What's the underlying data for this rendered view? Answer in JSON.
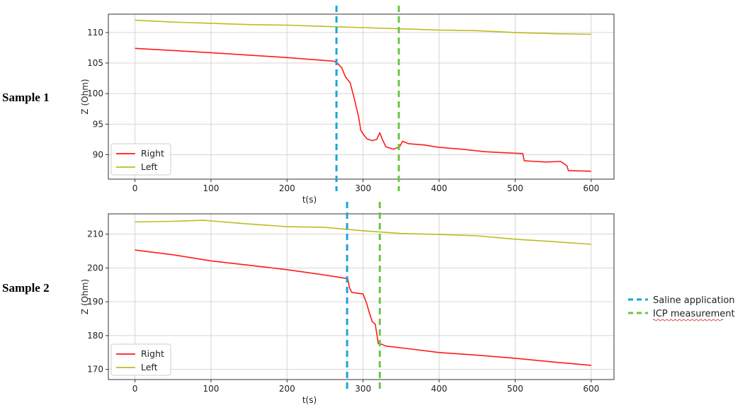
{
  "figure": {
    "sample_labels": [
      "Sample 1",
      "Sample 2"
    ],
    "legend": [
      {
        "label": "Saline application",
        "color": "#18a7d6",
        "style": "dashed"
      },
      {
        "label": "ICP measurement",
        "color": "#6cc644",
        "style": "dashed"
      }
    ]
  },
  "chart_data": [
    {
      "type": "line",
      "title": "",
      "xlabel": "t(s)",
      "ylabel": "Z (Ohm)",
      "xlim": [
        -35,
        630
      ],
      "ylim": [
        86,
        113
      ],
      "xticks": [
        0,
        100,
        200,
        300,
        400,
        500,
        600
      ],
      "yticks": [
        90,
        95,
        100,
        105,
        110
      ],
      "grid": true,
      "legend_position": "lower-left",
      "events": {
        "saline_application": 265,
        "icp_measurement": 347
      },
      "series": [
        {
          "name": "Right",
          "color": "#ff1a1a",
          "x": [
            0,
            100,
            200,
            262,
            266,
            272,
            277,
            283,
            288,
            294,
            297,
            300,
            305,
            312,
            318,
            322,
            325,
            330,
            340,
            348,
            352,
            360,
            380,
            400,
            430,
            460,
            490,
            510,
            512,
            540,
            560,
            568,
            570,
            600
          ],
          "y": [
            107.4,
            106.7,
            105.9,
            105.3,
            105.0,
            104.2,
            102.7,
            101.8,
            99.4,
            96.3,
            94.0,
            93.4,
            92.6,
            92.3,
            92.5,
            93.6,
            92.6,
            91.3,
            90.9,
            91.3,
            92.2,
            91.8,
            91.6,
            91.2,
            90.9,
            90.5,
            90.3,
            90.2,
            89.0,
            88.8,
            88.9,
            88.2,
            87.4,
            87.3
          ]
        },
        {
          "name": "Left",
          "color": "#bcbd22",
          "x": [
            0,
            50,
            100,
            150,
            200,
            250,
            300,
            350,
            400,
            450,
            500,
            550,
            600
          ],
          "y": [
            112.0,
            111.7,
            111.5,
            111.3,
            111.2,
            111.0,
            110.8,
            110.6,
            110.4,
            110.3,
            110.0,
            109.8,
            109.7
          ]
        }
      ]
    },
    {
      "type": "line",
      "title": "",
      "xlabel": "t(s)",
      "ylabel": "Z (Ohm)",
      "xlim": [
        -35,
        630
      ],
      "ylim": [
        167,
        216
      ],
      "xticks": [
        0,
        100,
        200,
        300,
        400,
        500,
        600
      ],
      "yticks": [
        170,
        180,
        190,
        200,
        210
      ],
      "grid": true,
      "legend_position": "lower-left",
      "events": {
        "saline_application": 279,
        "icp_measurement": 322
      },
      "series": [
        {
          "name": "Right",
          "color": "#ff1a1a",
          "x": [
            0,
            50,
            100,
            150,
            200,
            250,
            275,
            280,
            282,
            285,
            290,
            300,
            305,
            308,
            312,
            316,
            320,
            322,
            325,
            330,
            360,
            400,
            450,
            500,
            550,
            600
          ],
          "y": [
            205.3,
            203.9,
            202.1,
            200.8,
            199.5,
            197.9,
            197.0,
            196.8,
            194.2,
            192.8,
            192.6,
            192.3,
            189.3,
            186.9,
            184.1,
            183.4,
            177.6,
            177.5,
            177.4,
            176.9,
            176.1,
            175.0,
            174.2,
            173.3,
            172.2,
            171.2
          ]
        },
        {
          "name": "Left",
          "color": "#bcbd22",
          "x": [
            0,
            50,
            90,
            100,
            150,
            200,
            250,
            300,
            350,
            400,
            450,
            500,
            550,
            600
          ],
          "y": [
            213.6,
            213.8,
            214.1,
            213.9,
            213.0,
            212.2,
            212.0,
            211.0,
            210.2,
            209.9,
            209.5,
            208.5,
            207.8,
            207.0
          ]
        }
      ]
    }
  ]
}
